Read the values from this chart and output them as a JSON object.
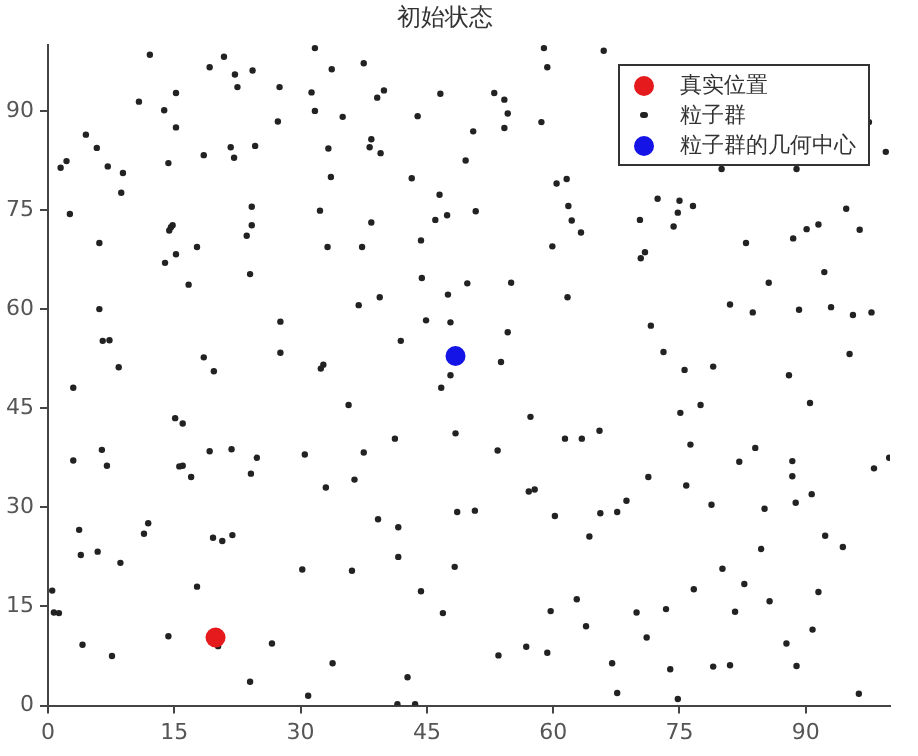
{
  "chart_data": {
    "type": "scatter",
    "title": "初始状态",
    "xlim": [
      0,
      100
    ],
    "ylim": [
      0,
      100
    ],
    "xticks": [
      0,
      15,
      30,
      45,
      60,
      75,
      90
    ],
    "yticks": [
      0,
      15,
      30,
      45,
      60,
      75,
      90
    ],
    "grid": false,
    "legend": "top right",
    "marker": "circle",
    "series": [
      {
        "name": "真实位置",
        "color": "#e41a1c",
        "x": [
          19.9
        ],
        "values": [
          10.3
        ]
      },
      {
        "name": "粒子群",
        "color": "#222222",
        "x": [
          12.1,
          10.8,
          13.8,
          15.2,
          15.2,
          19.2,
          20.9,
          22.2,
          22.5,
          24.3,
          27.5,
          27.3,
          4.5,
          5.8,
          1.5,
          2.2,
          7.1,
          8.9,
          8.7,
          2.6,
          14.3,
          18.5,
          21.7,
          22.1,
          24.6,
          6.1,
          14.6,
          14.8,
          14.4,
          15.2,
          13.9,
          17.7,
          16.7,
          23.6,
          24.2,
          24.2,
          24.0,
          6.1,
          6.5,
          7.3,
          8.4,
          18.5,
          19.7,
          27.6,
          27.6,
          31.7,
          33.7,
          37.5,
          31.3,
          31.7,
          35.0,
          39.1,
          39.9,
          46.6,
          43.9,
          53.0,
          54.2,
          54.6,
          54.2,
          50.5,
          58.6,
          58.9,
          59.3,
          33.3,
          38.4,
          38.2,
          39.5,
          49.6,
          33.6,
          43.2,
          46.5,
          32.3,
          38.4,
          46.0,
          47.4,
          50.8,
          44.3,
          33.2,
          37.3,
          59.9,
          60.4,
          61.6,
          61.8,
          62.2,
          63.3,
          44.4,
          49.8,
          55.0,
          39.4,
          36.9,
          47.5,
          61.7,
          44.9,
          47.8,
          41.9,
          54.6,
          32.7,
          32.4,
          53.8,
          66.0,
          97.5,
          99.5,
          80.0,
          88.9,
          72.4,
          75.0,
          76.6,
          74.8,
          70.3,
          74.3,
          94.8,
          96.4,
          91.5,
          90.1,
          88.5,
          82.9,
          70.9,
          70.4,
          92.2,
          85.6,
          81.0,
          83.7,
          89.2,
          93.0,
          95.6,
          97.8,
          71.6,
          73.1,
          75.6,
          79.0,
          95.2,
          3.0,
          15.1,
          16.0,
          6.4,
          3.0,
          7.0,
          15.6,
          16.0,
          17.0,
          19.2,
          21.8,
          24.8,
          24.1,
          3.7,
          3.9,
          5.9,
          11.4,
          11.9,
          19.6,
          20.7,
          21.9,
          8.6,
          17.7,
          0.5,
          0.7,
          1.3,
          14.3,
          4.1,
          7.6,
          20.2,
          26.6,
          24.0,
          47.8,
          46.7,
          35.7,
          57.3,
          48.4,
          65.5,
          61.4,
          63.4,
          41.2,
          30.5,
          37.5,
          53.4,
          36.4,
          33.0,
          57.1,
          57.8,
          48.6,
          50.7,
          60.2,
          65.6,
          39.2,
          41.6,
          64.3,
          41.6,
          48.3,
          30.2,
          36.1,
          44.3,
          46.9,
          62.8,
          59.7,
          63.9,
          53.5,
          56.8,
          59.3,
          33.8,
          42.7,
          30.9,
          41.5,
          43.6,
          88.0,
          90.5,
          75.1,
          77.5,
          76.3,
          84.0,
          82.1,
          88.4,
          88.4,
          75.8,
          71.3,
          98.1,
          99.9,
          78.8,
          85.1,
          88.8,
          90.7,
          68.7,
          67.6,
          92.3,
          94.4,
          84.7,
          80.1,
          76.7,
          82.7,
          85.7,
          91.5,
          81.6,
          73.4,
          69.9,
          71.1,
          90.8,
          87.7,
          88.9,
          67.0,
          73.9,
          79.0,
          81.0,
          67.6,
          74.8,
          96.3
        ],
        "values": [
          98.5,
          91.4,
          90.1,
          92.7,
          87.5,
          96.6,
          98.2,
          95.5,
          93.6,
          96.1,
          93.6,
          88.4,
          86.4,
          84.4,
          81.4,
          82.4,
          81.6,
          80.6,
          77.6,
          74.4,
          82.1,
          83.3,
          84.5,
          82.9,
          84.7,
          70.0,
          72.4,
          72.7,
          71.9,
          68.3,
          67.0,
          69.4,
          63.7,
          71.1,
          72.7,
          75.5,
          65.3,
          60.0,
          55.2,
          55.3,
          51.2,
          52.7,
          50.6,
          58.1,
          53.4,
          99.5,
          96.3,
          97.2,
          92.8,
          90.0,
          89.1,
          92.0,
          93.1,
          92.6,
          89.2,
          92.7,
          91.7,
          89.6,
          87.4,
          86.9,
          88.3,
          99.5,
          96.6,
          84.3,
          85.7,
          84.5,
          83.6,
          82.5,
          80.0,
          79.8,
          77.3,
          74.9,
          73.1,
          73.5,
          74.2,
          74.8,
          70.4,
          69.4,
          69.4,
          69.5,
          79.0,
          79.7,
          75.6,
          73.4,
          71.6,
          64.7,
          63.9,
          64.0,
          61.8,
          60.6,
          62.2,
          61.8,
          58.3,
          58.0,
          55.2,
          56.5,
          51.6,
          51.0,
          52.0,
          99.1,
          88.3,
          83.8,
          81.2,
          81.2,
          76.7,
          76.4,
          75.6,
          74.6,
          73.5,
          72.5,
          75.2,
          72.0,
          72.8,
          72.1,
          70.7,
          70.0,
          68.6,
          67.7,
          65.6,
          64.0,
          60.7,
          59.5,
          59.9,
          60.3,
          59.1,
          59.5,
          57.5,
          53.5,
          50.8,
          51.3,
          53.2,
          48.1,
          43.5,
          42.7,
          38.7,
          37.1,
          36.3,
          36.2,
          36.3,
          34.6,
          38.5,
          38.8,
          37.5,
          35.1,
          26.6,
          22.8,
          23.3,
          26.0,
          27.6,
          25.4,
          24.9,
          25.8,
          21.6,
          18.0,
          17.4,
          14.1,
          14.0,
          10.5,
          9.2,
          7.5,
          9.0,
          9.4,
          3.6,
          50.0,
          48.1,
          45.5,
          43.7,
          41.2,
          41.6,
          40.4,
          40.4,
          40.4,
          38.0,
          38.3,
          38.6,
          34.2,
          33.0,
          32.4,
          32.7,
          29.3,
          29.5,
          28.7,
          29.1,
          28.2,
          27.0,
          25.6,
          22.5,
          21.0,
          20.6,
          20.4,
          17.3,
          14.0,
          16.1,
          14.3,
          12.0,
          7.6,
          8.9,
          8.0,
          6.4,
          4.3,
          1.5,
          0.2,
          0.2,
          50.0,
          45.8,
          44.3,
          45.5,
          39.5,
          39.0,
          36.9,
          37.0,
          34.7,
          33.3,
          34.6,
          35.9,
          37.5,
          30.4,
          29.8,
          30.7,
          32.0,
          31.0,
          29.3,
          25.7,
          24.0,
          23.7,
          20.7,
          17.6,
          18.4,
          15.8,
          17.2,
          14.2,
          14.6,
          14.1,
          10.3,
          11.5,
          9.4,
          6.0,
          6.4,
          5.5,
          5.9,
          6.1,
          1.9,
          1.0,
          1.8
        ]
      },
      {
        "name": "粒子群的几何中心",
        "color": "#1414e6",
        "x": [
          48.4
        ],
        "values": [
          52.9
        ]
      }
    ]
  }
}
